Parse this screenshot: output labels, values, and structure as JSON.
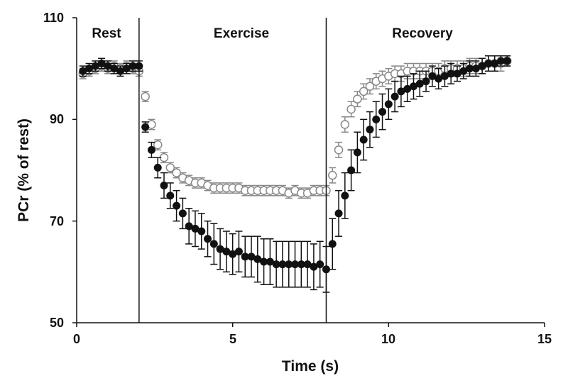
{
  "chart_data": {
    "type": "scatter",
    "title": "",
    "xlabel": "Time (s)",
    "ylabel": "PCr (% of rest)",
    "xlim": [
      0,
      15
    ],
    "ylim": [
      50,
      110
    ],
    "xticks": [
      "0",
      "5",
      "10",
      "15"
    ],
    "yticks": [
      "50",
      "70",
      "90",
      "110"
    ],
    "grid": false,
    "phase_dividers": [
      2,
      8
    ],
    "phase_labels": [
      "Rest",
      "Exercise",
      "Recovery"
    ],
    "x": [
      0.2,
      0.4,
      0.6,
      0.8,
      1.0,
      1.2,
      1.4,
      1.6,
      1.8,
      2.0,
      2.2,
      2.4,
      2.6,
      2.8,
      3.0,
      3.2,
      3.4,
      3.6,
      3.8,
      4.0,
      4.2,
      4.4,
      4.6,
      4.8,
      5.0,
      5.2,
      5.4,
      5.6,
      5.8,
      6.0,
      6.2,
      6.4,
      6.6,
      6.8,
      7.0,
      7.2,
      7.4,
      7.6,
      7.8,
      8.0,
      8.2,
      8.4,
      8.6,
      8.8,
      9.0,
      9.2,
      9.4,
      9.6,
      9.8,
      10.0,
      10.2,
      10.4,
      10.6,
      10.8,
      11.0,
      11.2,
      11.4,
      11.6,
      11.8,
      12.0,
      12.2,
      12.4,
      12.6,
      12.8,
      13.0,
      13.2,
      13.4,
      13.6,
      13.8
    ],
    "series": [
      {
        "marker": "open-circle",
        "color": "#888888",
        "values": [
          99,
          99.5,
          100,
          100.5,
          100,
          100.5,
          100,
          100.5,
          100,
          99.5,
          94.5,
          89,
          85,
          82.5,
          80.5,
          79.5,
          78.5,
          78,
          77.5,
          77.5,
          77,
          76.5,
          76.5,
          76.5,
          76.5,
          76.5,
          76,
          76,
          76,
          76,
          76,
          76,
          76,
          75.5,
          76,
          75.5,
          75.5,
          76,
          76,
          76,
          79,
          84,
          89,
          92,
          94,
          95.5,
          96.5,
          97.5,
          98,
          98.5,
          99,
          99,
          99.5,
          99.5,
          99.5,
          99.5,
          99.5,
          99.5,
          100,
          100,
          100,
          100,
          100.5,
          100.5,
          100.5,
          101,
          101,
          101,
          101.5
        ],
        "errors": [
          1,
          1,
          1,
          1,
          1,
          1,
          1,
          1,
          1,
          1,
          1,
          1,
          1,
          1,
          1,
          1,
          1,
          1,
          1,
          1,
          1,
          1,
          1,
          1,
          1,
          1,
          1,
          1,
          1,
          1,
          1,
          1,
          1,
          1,
          1,
          1,
          1,
          1,
          1,
          1,
          1.5,
          1.5,
          1.5,
          1.5,
          1.5,
          1.5,
          1.5,
          1.5,
          1.5,
          1.5,
          1.5,
          1.5,
          1.5,
          1.5,
          1.5,
          1.5,
          1.5,
          1.5,
          1.5,
          1.5,
          1.5,
          1.5,
          1.5,
          1.5,
          1.5,
          1.5,
          1.5,
          1.5,
          1
        ]
      },
      {
        "marker": "filled-circle",
        "color": "#111111",
        "values": [
          99.5,
          100,
          100.5,
          101,
          100.5,
          100,
          99.5,
          100,
          100.5,
          100.5,
          88.5,
          84,
          80.5,
          77,
          75,
          73,
          71.5,
          69,
          68.5,
          68,
          66.5,
          65.5,
          64.5,
          64,
          63.5,
          64,
          63,
          63,
          62.5,
          62,
          62,
          61.5,
          61.5,
          61.5,
          61.5,
          61.5,
          61.5,
          61,
          61.5,
          60.5,
          65.5,
          71.5,
          75,
          80,
          83.5,
          86,
          88,
          90,
          91.5,
          93,
          94.5,
          95.5,
          96,
          96.5,
          97,
          97.5,
          98.5,
          98,
          98.5,
          99,
          99,
          99.5,
          100,
          100,
          100.5,
          101,
          101,
          101.5,
          101.5
        ],
        "errors": [
          1,
          1,
          1,
          1,
          1,
          1,
          1,
          1,
          1,
          1,
          1,
          1.5,
          2,
          2.5,
          2.5,
          3,
          3,
          3.5,
          3.5,
          3.5,
          3.5,
          4,
          4,
          4,
          4,
          4,
          4,
          4,
          4.5,
          4.5,
          4.5,
          4.5,
          4.5,
          4.5,
          4.5,
          4.5,
          4.5,
          4.5,
          4.5,
          4.5,
          5,
          4.5,
          4.5,
          4,
          4,
          4,
          3.5,
          3.5,
          3.5,
          3,
          3,
          3,
          2.5,
          2.5,
          2.5,
          2,
          2,
          2,
          2,
          2,
          1.5,
          1.5,
          1.5,
          1.5,
          1.5,
          1.5,
          1.5,
          1,
          1
        ]
      }
    ]
  }
}
